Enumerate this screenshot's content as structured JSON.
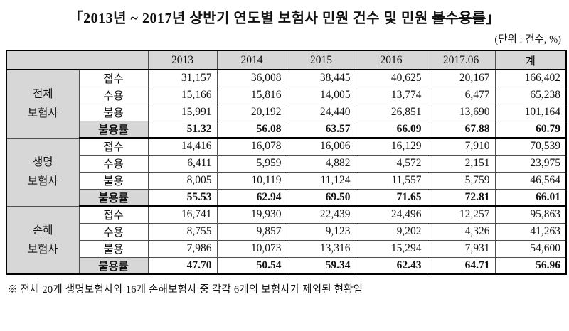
{
  "title": {
    "prefix": "「2013년 ~ 2017년 상반기 연도별 보험사 민원 건수 및 민원 ",
    "struck": "불수용률",
    "suffix": "」"
  },
  "unit_label": "(단위 : 건수, %)",
  "table": {
    "col_headers": [
      "2013",
      "2014",
      "2015",
      "2016",
      "2017.06",
      "계"
    ],
    "groups": [
      {
        "name_lines": [
          "전체",
          "보험사"
        ],
        "rows": [
          {
            "label": "접수",
            "bold": false,
            "values": [
              "31,157",
              "36,008",
              "38,445",
              "40,625",
              "20,167",
              "166,402"
            ]
          },
          {
            "label": "수용",
            "bold": false,
            "values": [
              "15,166",
              "15,816",
              "14,005",
              "13,774",
              "6,477",
              "65,238"
            ]
          },
          {
            "label": "불용",
            "bold": false,
            "values": [
              "15,991",
              "20,192",
              "24,440",
              "26,851",
              "13,690",
              "101,164"
            ]
          },
          {
            "label": "불용률",
            "bold": true,
            "values": [
              "51.32",
              "56.08",
              "63.57",
              "66.09",
              "67.88",
              "60.79"
            ]
          }
        ]
      },
      {
        "name_lines": [
          "생명",
          "보험사"
        ],
        "rows": [
          {
            "label": "접수",
            "bold": false,
            "values": [
              "14,416",
              "16,078",
              "16,006",
              "16,129",
              "7,910",
              "70,539"
            ]
          },
          {
            "label": "수용",
            "bold": false,
            "values": [
              "6,411",
              "5,959",
              "4,882",
              "4,572",
              "2,151",
              "23,975"
            ]
          },
          {
            "label": "불용",
            "bold": false,
            "values": [
              "8,005",
              "10,119",
              "11,124",
              "11,557",
              "5,759",
              "46,564"
            ]
          },
          {
            "label": "불용률",
            "bold": true,
            "values": [
              "55.53",
              "62.94",
              "69.50",
              "71.65",
              "72.81",
              "66.01"
            ]
          }
        ]
      },
      {
        "name_lines": [
          "손해",
          "보험사"
        ],
        "rows": [
          {
            "label": "접수",
            "bold": false,
            "values": [
              "16,741",
              "19,930",
              "22,439",
              "24,496",
              "12,257",
              "95,863"
            ]
          },
          {
            "label": "수용",
            "bold": false,
            "values": [
              "8,755",
              "9,857",
              "9,123",
              "9,202",
              "4,326",
              "41,263"
            ]
          },
          {
            "label": "불용",
            "bold": false,
            "values": [
              "7,986",
              "10,073",
              "13,316",
              "15,294",
              "7,931",
              "54,600"
            ]
          },
          {
            "label": "불용률",
            "bold": true,
            "values": [
              "47.70",
              "50.54",
              "59.34",
              "62.43",
              "64.71",
              "56.96"
            ]
          }
        ]
      }
    ]
  },
  "footnote": "※ 전체 20개 생명보험사와 16개 손해보험사 중 각각 6개의 보험사가 제외된 현황임",
  "colors": {
    "header_bg": "#d7d7d7",
    "border_thick": "#000000",
    "border_thin": "#4f4f4f",
    "text": "#111111"
  }
}
